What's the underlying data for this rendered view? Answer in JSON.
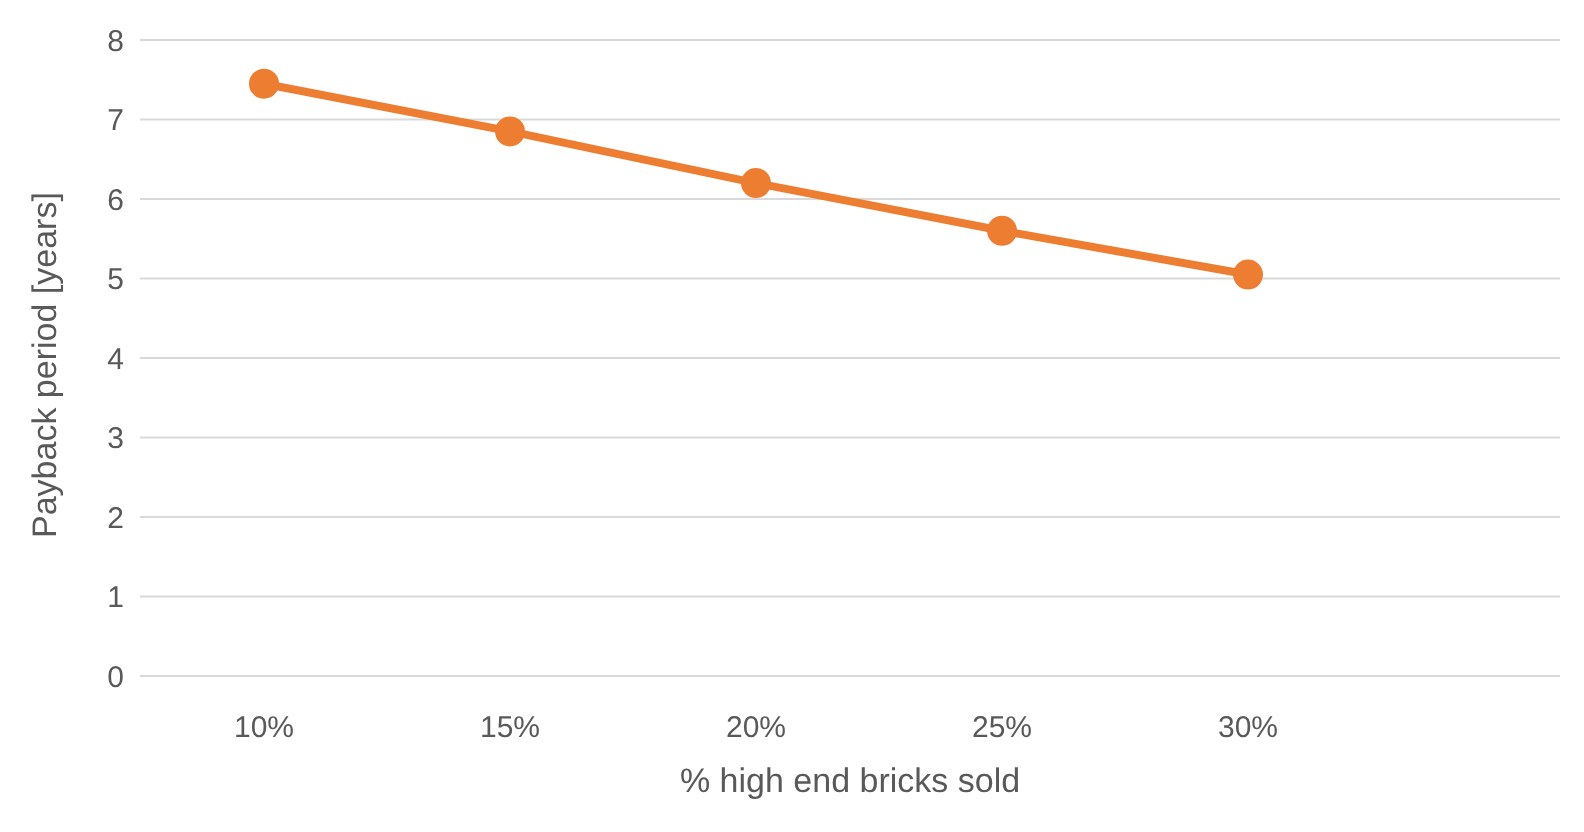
{
  "chart_data": {
    "type": "line",
    "xlabel": "% high end bricks sold",
    "ylabel": "Payback period [years]",
    "categories": [
      "10%",
      "15%",
      "20%",
      "25%",
      "30%"
    ],
    "series": [
      {
        "color": "#ed7d31",
        "values": [
          7.45,
          6.85,
          6.2,
          5.6,
          5.05
        ]
      }
    ],
    "ylim": [
      0,
      8
    ],
    "yticks": [
      0,
      1,
      2,
      3,
      4,
      5,
      6,
      7,
      8
    ],
    "grid": "y",
    "marker": "circle",
    "line_style": "solid",
    "legend": false
  }
}
